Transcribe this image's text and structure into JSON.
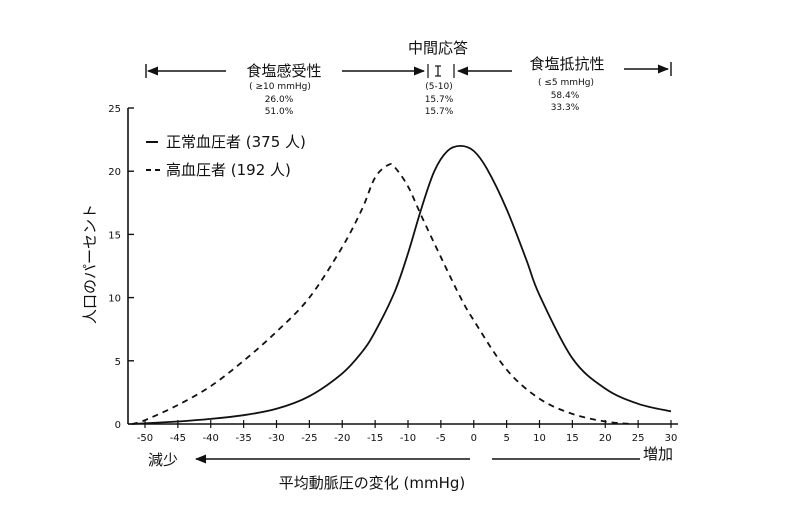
{
  "chart_data": {
    "type": "line",
    "xlabel": "平均動脈圧の変化 (mmHg)",
    "ylabel": "人口のパーセント",
    "xlim": [
      -50,
      30
    ],
    "ylim": [
      0,
      25
    ],
    "x_ticks": [
      "-50",
      "-45",
      "-40",
      "-35",
      "-30",
      "-25",
      "-20",
      "-15",
      "-10",
      "-5",
      "0",
      "5",
      "10",
      "15",
      "20",
      "25",
      "30"
    ],
    "y_ticks": [
      "0",
      "5",
      "10",
      "15",
      "20",
      "25"
    ],
    "direction_labels": {
      "left": "減少",
      "right": "増加"
    },
    "legend": [
      {
        "label": "正常血圧者 (375 人)",
        "style": "solid"
      },
      {
        "label": "高血圧者 (192 人)",
        "style": "dashed"
      }
    ],
    "series": [
      {
        "name": "正常血圧者 (375 人)",
        "style": "solid",
        "x": [
          -52,
          -45,
          -40,
          -35,
          -30,
          -25,
          -20,
          -17,
          -15,
          -12,
          -10,
          -8,
          -6,
          -4,
          -2,
          0,
          2,
          5,
          8,
          10,
          15,
          20,
          25,
          30
        ],
        "y": [
          0,
          0.2,
          0.4,
          0.7,
          1.2,
          2.2,
          4.0,
          5.7,
          7.3,
          10.5,
          13.5,
          17.0,
          20.0,
          21.6,
          22.0,
          21.6,
          20.2,
          17.0,
          13.0,
          10.2,
          5.2,
          2.8,
          1.6,
          1.0
        ]
      },
      {
        "name": "高血圧者 (192 人)",
        "style": "dashed",
        "x": [
          -52,
          -50,
          -45,
          -40,
          -35,
          -30,
          -25,
          -20,
          -17,
          -15,
          -13,
          -12,
          -10,
          -8,
          -5,
          -2,
          0,
          5,
          10,
          15,
          20,
          24
        ],
        "y": [
          0,
          0.3,
          1.5,
          3.0,
          5.0,
          7.3,
          10.0,
          14.0,
          17.0,
          19.5,
          20.5,
          20.3,
          18.8,
          16.5,
          13.2,
          10.0,
          8.2,
          4.3,
          2.0,
          0.8,
          0.2,
          0
        ]
      }
    ],
    "categories": [
      {
        "label": "食塩感受性",
        "range_label": "( ≥10 mmHg)",
        "values": [
          "26.0%",
          "51.0%"
        ]
      },
      {
        "label": "中間応答",
        "range_label": "(5-10)",
        "values": [
          "15.7%",
          "15.7%"
        ]
      },
      {
        "label": "食塩抵抗性",
        "range_label": "( ≤5 mmHg)",
        "values": [
          "58.4%",
          "33.3%"
        ]
      }
    ]
  }
}
